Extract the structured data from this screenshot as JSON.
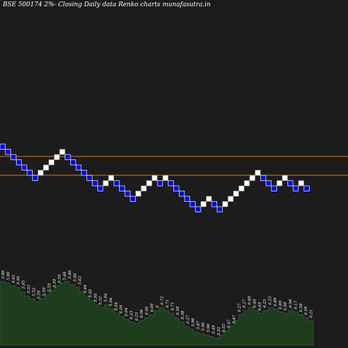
{
  "header": {
    "title": "BSE 500174  2%-  Closing Daily data  Renko  charts munafasutra.in"
  },
  "colors": {
    "background": "#1c1c1c",
    "up_brick": "#ffffff",
    "down_brick": "#0000ff",
    "reference_line": "#cc7a1a",
    "volume_fill": "#1e3d1e",
    "volume_edge": "#2f5f2f"
  },
  "chart_data": {
    "type": "renko",
    "brick_size_label": "2%",
    "bricks": [
      {
        "level": 0,
        "dir": "down"
      },
      {
        "level": 1,
        "dir": "down"
      },
      {
        "level": 2,
        "dir": "down"
      },
      {
        "level": 3,
        "dir": "down"
      },
      {
        "level": 4,
        "dir": "down"
      },
      {
        "level": 5,
        "dir": "down"
      },
      {
        "level": 6,
        "dir": "down"
      },
      {
        "level": 5,
        "dir": "up"
      },
      {
        "level": 4,
        "dir": "up"
      },
      {
        "level": 3,
        "dir": "up"
      },
      {
        "level": 2,
        "dir": "up"
      },
      {
        "level": 1,
        "dir": "up"
      },
      {
        "level": 2,
        "dir": "down"
      },
      {
        "level": 3,
        "dir": "down"
      },
      {
        "level": 4,
        "dir": "down"
      },
      {
        "level": 5,
        "dir": "down"
      },
      {
        "level": 6,
        "dir": "down"
      },
      {
        "level": 7,
        "dir": "down"
      },
      {
        "level": 8,
        "dir": "down"
      },
      {
        "level": 7,
        "dir": "up"
      },
      {
        "level": 6,
        "dir": "up"
      },
      {
        "level": 7,
        "dir": "down"
      },
      {
        "level": 8,
        "dir": "down"
      },
      {
        "level": 9,
        "dir": "down"
      },
      {
        "level": 10,
        "dir": "down"
      },
      {
        "level": 9,
        "dir": "up"
      },
      {
        "level": 8,
        "dir": "up"
      },
      {
        "level": 7,
        "dir": "up"
      },
      {
        "level": 6,
        "dir": "up"
      },
      {
        "level": 7,
        "dir": "down"
      },
      {
        "level": 6,
        "dir": "up"
      },
      {
        "level": 7,
        "dir": "down"
      },
      {
        "level": 8,
        "dir": "down"
      },
      {
        "level": 9,
        "dir": "down"
      },
      {
        "level": 10,
        "dir": "down"
      },
      {
        "level": 11,
        "dir": "down"
      },
      {
        "level": 12,
        "dir": "down"
      },
      {
        "level": 11,
        "dir": "up"
      },
      {
        "level": 10,
        "dir": "up"
      },
      {
        "level": 11,
        "dir": "down"
      },
      {
        "level": 12,
        "dir": "down"
      },
      {
        "level": 11,
        "dir": "up"
      },
      {
        "level": 10,
        "dir": "up"
      },
      {
        "level": 9,
        "dir": "up"
      },
      {
        "level": 8,
        "dir": "up"
      },
      {
        "level": 7,
        "dir": "up"
      },
      {
        "level": 6,
        "dir": "up"
      },
      {
        "level": 5,
        "dir": "up"
      },
      {
        "level": 6,
        "dir": "down"
      },
      {
        "level": 7,
        "dir": "down"
      },
      {
        "level": 8,
        "dir": "down"
      },
      {
        "level": 7,
        "dir": "up"
      },
      {
        "level": 6,
        "dir": "up"
      },
      {
        "level": 7,
        "dir": "down"
      },
      {
        "level": 8,
        "dir": "down"
      },
      {
        "level": 7,
        "dir": "up"
      },
      {
        "level": 8,
        "dir": "down"
      }
    ],
    "reference_lines": [
      {
        "level": 2.3
      },
      {
        "level": 5.9
      }
    ],
    "volume_labels": [
      "5.86",
      "5.86",
      "5.62",
      "5.95",
      "5.95",
      "5.53",
      "5.53",
      "5.59",
      "5.59",
      "5.59",
      "5.59",
      "5.59",
      "5.48",
      "5.86",
      "5.86",
      "5.62",
      "5.44",
      "5.95",
      "5.95",
      "5.32",
      "5.94",
      "5.94",
      "6.04",
      "6.04",
      "6.04",
      "6.23",
      "6.23",
      "6.06",
      "6.06",
      "6.06",
      "6",
      "6.72",
      "6.71",
      "6.71",
      "6.58",
      "6.38",
      "6.27",
      "5.96",
      "5.87",
      "5.96",
      "5.96",
      "6.49",
      "5.52",
      "5.52",
      "5.47",
      "5.47",
      "6.27",
      "6.27",
      "6.49",
      "6.49",
      "6.65",
      "6.23",
      "6.23",
      "6.89",
      "6.89",
      "6.98",
      "6.98",
      "6.17",
      "6.58",
      "6.58",
      "6.21"
    ],
    "volume_levels": [
      0.88,
      0.86,
      0.82,
      0.8,
      0.74,
      0.68,
      0.64,
      0.6,
      0.64,
      0.7,
      0.76,
      0.82,
      0.86,
      0.88,
      0.84,
      0.8,
      0.74,
      0.68,
      0.62,
      0.56,
      0.52,
      0.56,
      0.5,
      0.44,
      0.4,
      0.36,
      0.32,
      0.3,
      0.34,
      0.38,
      0.42,
      0.48,
      0.52,
      0.48,
      0.44,
      0.38,
      0.32,
      0.26,
      0.22,
      0.18,
      0.16,
      0.14,
      0.12,
      0.1,
      0.14,
      0.2,
      0.26,
      0.34,
      0.42,
      0.48,
      0.52,
      0.48,
      0.44,
      0.48,
      0.52,
      0.5,
      0.46,
      0.44,
      0.48,
      0.46,
      0.42,
      0.38,
      0.34
    ]
  }
}
